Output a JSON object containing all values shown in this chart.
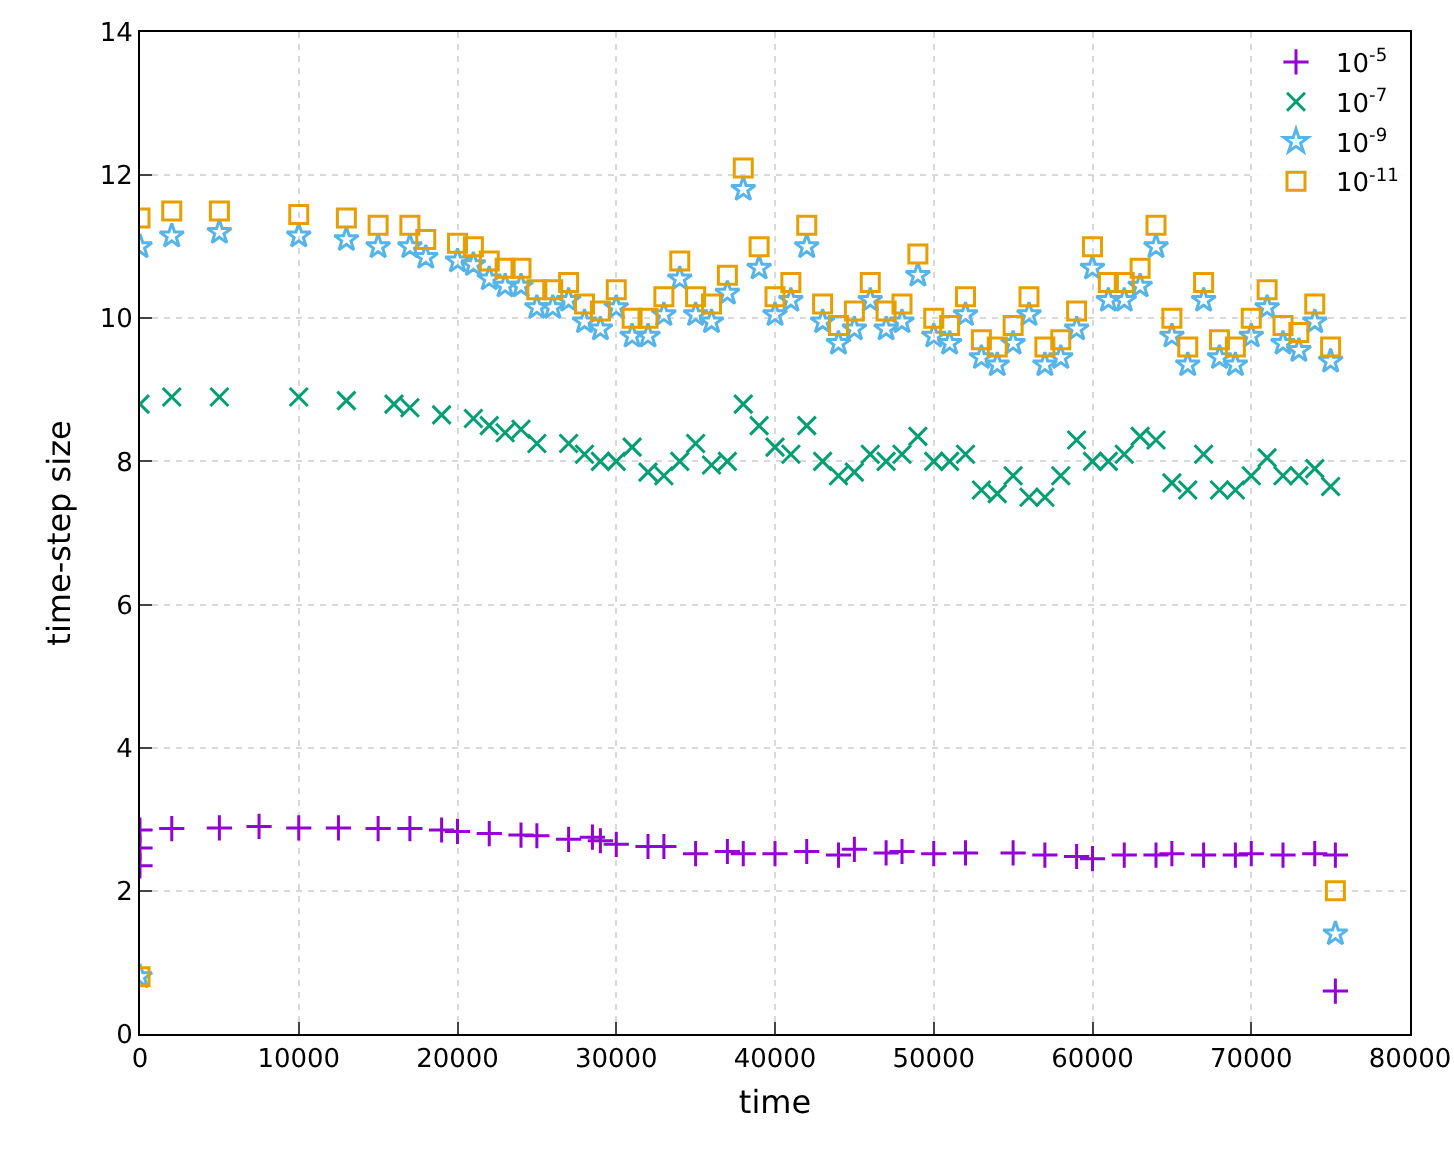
{
  "chart_data": {
    "type": "scatter",
    "xlabel": "time",
    "ylabel": "time-step size",
    "xlim": [
      0,
      80000
    ],
    "xticks": [
      0,
      10000,
      20000,
      30000,
      40000,
      50000,
      60000,
      70000,
      80000
    ],
    "ylim": [
      0,
      14
    ],
    "yticks": [
      0,
      2,
      4,
      6,
      8,
      10,
      12,
      14
    ],
    "grid": true,
    "legend": "top right",
    "series": [
      {
        "name": "10$^{-5}$",
        "color": "#9400d3",
        "marker": "cross",
        "x": [
          0,
          0,
          0,
          2000,
          5000,
          7500,
          10000,
          12500,
          15000,
          17000,
          19000,
          20000,
          22000,
          24000,
          25000,
          27000,
          28500,
          29000,
          30000,
          32000,
          33000,
          35000,
          37000,
          38000,
          40000,
          42000,
          44000,
          45000,
          47000,
          48000,
          50000,
          52000,
          55000,
          57000,
          59000,
          60000,
          62000,
          64000,
          65000,
          67000,
          69000,
          70000,
          72000,
          74000,
          75300,
          75300
        ],
        "values": [
          2.85,
          2.6,
          2.35,
          2.87,
          2.88,
          2.9,
          2.88,
          2.88,
          2.87,
          2.87,
          2.85,
          2.83,
          2.8,
          2.78,
          2.77,
          2.72,
          2.75,
          2.7,
          2.65,
          2.62,
          2.62,
          2.52,
          2.55,
          2.52,
          2.52,
          2.55,
          2.5,
          2.58,
          2.53,
          2.55,
          2.52,
          2.53,
          2.53,
          2.5,
          2.48,
          2.45,
          2.5,
          2.5,
          2.52,
          2.5,
          2.5,
          2.52,
          2.5,
          2.52,
          2.5,
          0.6
        ]
      },
      {
        "name": "10$^{-7}$",
        "color": "#009e73",
        "marker": "x",
        "x": [
          0,
          2000,
          5000,
          10000,
          13000,
          16000,
          17000,
          19000,
          21000,
          22000,
          23000,
          24000,
          25000,
          27000,
          28000,
          29000,
          30000,
          31000,
          32000,
          33000,
          34000,
          35000,
          36000,
          37000,
          38000,
          39000,
          40000,
          41000,
          42000,
          43000,
          44000,
          45000,
          46000,
          47000,
          48000,
          49000,
          50000,
          51000,
          52000,
          53000,
          54000,
          55000,
          56000,
          57000,
          58000,
          59000,
          60000,
          61000,
          62000,
          63000,
          64000,
          65000,
          66000,
          67000,
          68000,
          69000,
          70000,
          71000,
          72000,
          73000,
          74000,
          75000
        ],
        "values": [
          8.8,
          8.9,
          8.9,
          8.9,
          8.85,
          8.8,
          8.75,
          8.65,
          8.6,
          8.5,
          8.4,
          8.45,
          8.25,
          8.25,
          8.1,
          8.0,
          8.0,
          8.2,
          7.85,
          7.8,
          8.0,
          8.25,
          7.95,
          8.0,
          8.8,
          8.5,
          8.2,
          8.1,
          8.5,
          8.0,
          7.8,
          7.85,
          8.1,
          8.0,
          8.1,
          8.35,
          8.0,
          8.0,
          8.1,
          7.6,
          7.55,
          7.8,
          7.5,
          7.5,
          7.8,
          8.3,
          8.0,
          8.0,
          8.1,
          8.35,
          8.3,
          7.7,
          7.6,
          8.1,
          7.6,
          7.6,
          7.8,
          8.05,
          7.8,
          7.8,
          7.9,
          7.65
        ]
      },
      {
        "name": "10$^{-9}$",
        "color": "#56b4e9",
        "marker": "star",
        "x": [
          0,
          0,
          2000,
          5000,
          10000,
          13000,
          15000,
          17000,
          18000,
          20000,
          21000,
          22000,
          23000,
          24000,
          25000,
          26000,
          27000,
          28000,
          29000,
          30000,
          31000,
          32000,
          33000,
          34000,
          35000,
          36000,
          37000,
          38000,
          39000,
          40000,
          41000,
          42000,
          43000,
          44000,
          45000,
          46000,
          47000,
          48000,
          49000,
          50000,
          51000,
          52000,
          53000,
          54000,
          55000,
          56000,
          57000,
          58000,
          59000,
          60000,
          61000,
          62000,
          63000,
          64000,
          65000,
          66000,
          67000,
          68000,
          69000,
          70000,
          71000,
          72000,
          73000,
          74000,
          75000,
          75300
        ],
        "values": [
          11.0,
          0.8,
          11.15,
          11.2,
          11.15,
          11.1,
          11.0,
          11.0,
          10.85,
          10.8,
          10.75,
          10.55,
          10.45,
          10.45,
          10.15,
          10.15,
          10.25,
          9.95,
          9.85,
          10.15,
          9.75,
          9.75,
          10.05,
          10.55,
          10.05,
          9.95,
          10.35,
          11.8,
          10.7,
          10.05,
          10.25,
          11.0,
          9.95,
          9.65,
          9.85,
          10.25,
          9.85,
          9.95,
          10.6,
          9.75,
          9.65,
          10.05,
          9.45,
          9.35,
          9.65,
          10.05,
          9.35,
          9.45,
          9.85,
          10.7,
          10.25,
          10.25,
          10.45,
          11.0,
          9.75,
          9.35,
          10.25,
          9.45,
          9.35,
          9.75,
          10.15,
          9.65,
          9.55,
          9.95,
          9.4,
          1.4
        ]
      },
      {
        "name": "10$^{-11}$",
        "color": "#e69f00",
        "marker": "square",
        "x": [
          0,
          0,
          2000,
          5000,
          10000,
          13000,
          15000,
          17000,
          18000,
          20000,
          21000,
          22000,
          23000,
          24000,
          25000,
          26000,
          27000,
          28000,
          29000,
          30000,
          31000,
          32000,
          33000,
          34000,
          35000,
          36000,
          37000,
          38000,
          39000,
          40000,
          41000,
          42000,
          43000,
          44000,
          45000,
          46000,
          47000,
          48000,
          49000,
          50000,
          51000,
          52000,
          53000,
          54000,
          55000,
          56000,
          57000,
          58000,
          59000,
          60000,
          61000,
          62000,
          63000,
          64000,
          65000,
          66000,
          67000,
          68000,
          69000,
          70000,
          71000,
          72000,
          73000,
          74000,
          75000,
          75300
        ],
        "values": [
          11.4,
          0.8,
          11.5,
          11.5,
          11.45,
          11.4,
          11.3,
          11.3,
          11.1,
          11.05,
          11.0,
          10.8,
          10.7,
          10.7,
          10.4,
          10.4,
          10.5,
          10.2,
          10.1,
          10.4,
          10.0,
          10.0,
          10.3,
          10.8,
          10.3,
          10.2,
          10.6,
          12.1,
          11.0,
          10.3,
          10.5,
          11.3,
          10.2,
          9.9,
          10.1,
          10.5,
          10.1,
          10.2,
          10.9,
          10.0,
          9.9,
          10.3,
          9.7,
          9.6,
          9.9,
          10.3,
          9.6,
          9.7,
          10.1,
          11.0,
          10.5,
          10.5,
          10.7,
          11.3,
          10.0,
          9.6,
          10.5,
          9.7,
          9.6,
          10.0,
          10.4,
          9.9,
          9.8,
          10.2,
          9.6,
          2.0
        ]
      }
    ]
  }
}
